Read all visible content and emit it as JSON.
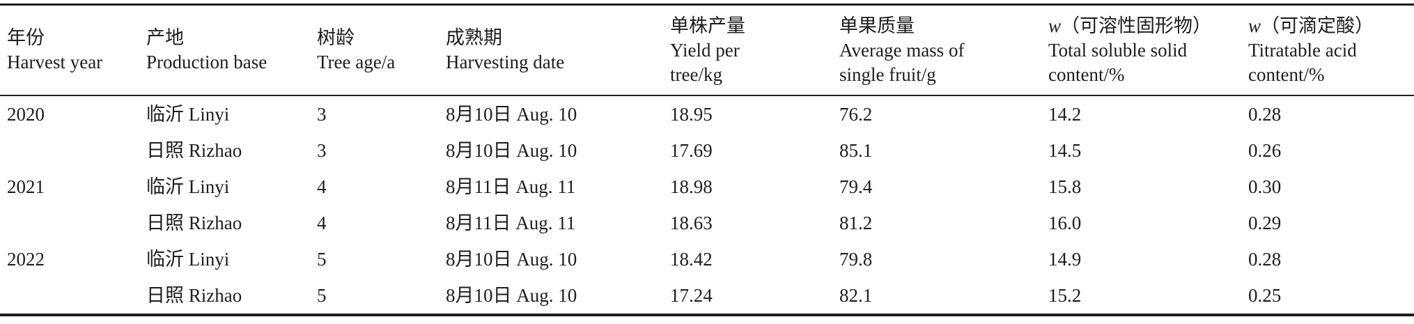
{
  "colors": {
    "text": "#1d1d1d",
    "rule": "#1d1d1d",
    "background": "#ffffff"
  },
  "table": {
    "columns": [
      {
        "zh": "年份",
        "en": "Harvest year"
      },
      {
        "zh": "产地",
        "en": "Production base"
      },
      {
        "zh": "树龄",
        "en": "Tree age/a"
      },
      {
        "zh": "成熟期",
        "en": "Harvesting date"
      },
      {
        "zh": "单株产量",
        "en": "Yield per tree/kg"
      },
      {
        "zh": "单果质量",
        "en": "Average mass of single fruit/g"
      },
      {
        "zh_italic": "w",
        "zh": "（可溶性固形物）",
        "en": "Total soluble solid content/%"
      },
      {
        "zh_italic": "w",
        "zh": "（可滴定酸）",
        "en": "Titratable acid content/%"
      }
    ],
    "rows": [
      [
        "2020",
        "临沂 Linyi",
        "3",
        "8月10日 Aug. 10",
        "18.95",
        "76.2",
        "14.2",
        "0.28"
      ],
      [
        "",
        "日照 Rizhao",
        "3",
        "8月10日 Aug. 10",
        "17.69",
        "85.1",
        "14.5",
        "0.26"
      ],
      [
        "2021",
        "临沂 Linyi",
        "4",
        "8月11日 Aug. 11",
        "18.98",
        "79.4",
        "15.8",
        "0.30"
      ],
      [
        "",
        "日照 Rizhao",
        "4",
        "8月11日 Aug. 11",
        "18.63",
        "81.2",
        "16.0",
        "0.29"
      ],
      [
        "2022",
        "临沂 Linyi",
        "5",
        "8月10日 Aug. 10",
        "18.42",
        "79.8",
        "14.9",
        "0.28"
      ],
      [
        "",
        "日照 Rizhao",
        "5",
        "8月10日 Aug. 10",
        "17.24",
        "82.1",
        "15.2",
        "0.25"
      ]
    ]
  }
}
